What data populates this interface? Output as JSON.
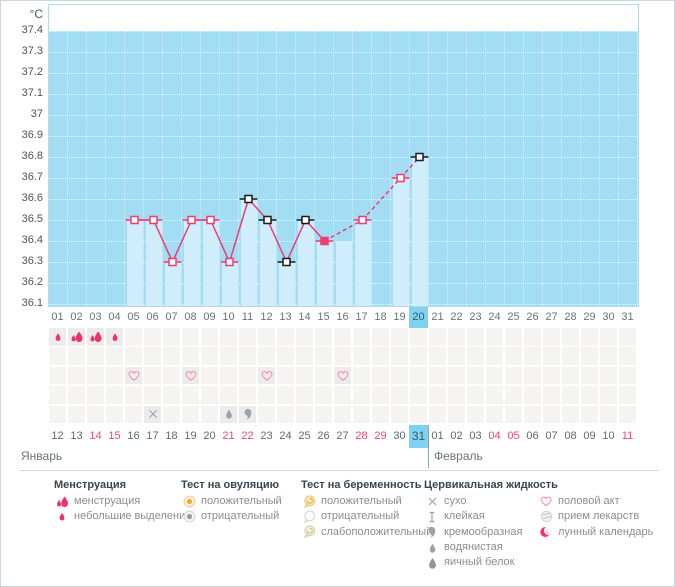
{
  "y_axis": {
    "unit": "°C",
    "tick_labels": [
      "37.4",
      "37.3",
      "37.2",
      "37.1",
      "37",
      "36.9",
      "36.8",
      "36.7",
      "36.6",
      "36.5",
      "36.4",
      "36.3",
      "36.2",
      "36.1"
    ]
  },
  "chart_data": {
    "type": "line",
    "ylabel": "°C",
    "ylim": [
      36.1,
      37.4
    ],
    "grid_step": 0.1,
    "x_categories": [
      "01",
      "02",
      "03",
      "04",
      "05",
      "06",
      "07",
      "08",
      "09",
      "10",
      "11",
      "12",
      "13",
      "14",
      "15",
      "16",
      "17",
      "18",
      "19",
      "20",
      "21",
      "22",
      "23",
      "24",
      "25",
      "26",
      "27",
      "28",
      "29",
      "30",
      "31"
    ],
    "points": [
      {
        "day": 5,
        "temp": 36.5,
        "marker": "pink-open",
        "link_to_prev": null
      },
      {
        "day": 6,
        "temp": 36.5,
        "marker": "pink-open",
        "link_to_prev": "solid"
      },
      {
        "day": 7,
        "temp": 36.3,
        "marker": "pink-open",
        "link_to_prev": "solid"
      },
      {
        "day": 8,
        "temp": 36.5,
        "marker": "pink-open",
        "link_to_prev": "solid"
      },
      {
        "day": 9,
        "temp": 36.5,
        "marker": "pink-open",
        "link_to_prev": "solid"
      },
      {
        "day": 10,
        "temp": 36.3,
        "marker": "pink-open",
        "link_to_prev": "solid"
      },
      {
        "day": 11,
        "temp": 36.6,
        "marker": "black-open",
        "link_to_prev": "solid"
      },
      {
        "day": 12,
        "temp": 36.5,
        "marker": "black-open",
        "link_to_prev": "solid"
      },
      {
        "day": 13,
        "temp": 36.3,
        "marker": "black-open",
        "link_to_prev": "solid"
      },
      {
        "day": 14,
        "temp": 36.5,
        "marker": "black-open",
        "link_to_prev": "solid"
      },
      {
        "day": 15,
        "temp": 36.4,
        "marker": "pink-filled",
        "link_to_prev": "solid"
      },
      {
        "day": 17,
        "temp": 36.5,
        "marker": "pink-open",
        "link_to_prev": "dashed"
      },
      {
        "day": 19,
        "temp": 36.7,
        "marker": "pink-open",
        "link_to_prev": "dashed"
      },
      {
        "day": 20,
        "temp": 36.8,
        "marker": "black-open",
        "link_to_prev": "dashed"
      }
    ],
    "bars": [
      {
        "day": 5,
        "top": 36.5
      },
      {
        "day": 6,
        "top": 36.5
      },
      {
        "day": 7,
        "top": 36.3
      },
      {
        "day": 8,
        "top": 36.5
      },
      {
        "day": 9,
        "top": 36.5
      },
      {
        "day": 10,
        "top": 36.3
      },
      {
        "day": 11,
        "top": 36.6
      },
      {
        "day": 12,
        "top": 36.5
      },
      {
        "day": 13,
        "top": 36.3
      },
      {
        "day": 14,
        "top": 36.5
      },
      {
        "day": 15,
        "top": 36.4
      },
      {
        "day": 16,
        "top": 36.4
      },
      {
        "day": 17,
        "top": 36.5
      },
      {
        "day": 19,
        "top": 36.7
      },
      {
        "day": 20,
        "top": 36.8
      }
    ]
  },
  "cycle_days": {
    "labels": [
      "01",
      "02",
      "03",
      "04",
      "05",
      "06",
      "07",
      "08",
      "09",
      "10",
      "11",
      "12",
      "13",
      "14",
      "15",
      "16",
      "17",
      "18",
      "19",
      "20",
      "21",
      "22",
      "23",
      "24",
      "25",
      "26",
      "27",
      "28",
      "29",
      "30",
      "31"
    ],
    "highlight_index": 19
  },
  "symbol_rows": [
    {
      "name": "menstruation",
      "cells": [
        {
          "day": 1,
          "icon": "drop-small-pink"
        },
        {
          "day": 2,
          "icon": "drop-double-pink"
        },
        {
          "day": 3,
          "icon": "drop-double-pink"
        },
        {
          "day": 4,
          "icon": "drop-small-pink"
        }
      ]
    },
    {
      "name": "ovulation-test",
      "cells": []
    },
    {
      "name": "intercourse",
      "cells": [
        {
          "day": 5,
          "icon": "heart-pink"
        },
        {
          "day": 8,
          "icon": "heart-pink"
        },
        {
          "day": 12,
          "icon": "heart-pink"
        },
        {
          "day": 16,
          "icon": "heart-pink"
        }
      ]
    },
    {
      "name": "pregnancy-test",
      "cells": []
    },
    {
      "name": "cervical-fluid",
      "cells": [
        {
          "day": 6,
          "icon": "x-dry"
        },
        {
          "day": 10,
          "icon": "drop-watery"
        },
        {
          "day": 11,
          "icon": "comma-creamy"
        }
      ]
    }
  ],
  "calendar": {
    "dates": [
      {
        "label": "12",
        "weekend": false
      },
      {
        "label": "13",
        "weekend": false
      },
      {
        "label": "14",
        "weekend": true
      },
      {
        "label": "15",
        "weekend": true
      },
      {
        "label": "16",
        "weekend": false
      },
      {
        "label": "17",
        "weekend": false
      },
      {
        "label": "18",
        "weekend": false
      },
      {
        "label": "19",
        "weekend": false
      },
      {
        "label": "20",
        "weekend": false
      },
      {
        "label": "21",
        "weekend": true
      },
      {
        "label": "22",
        "weekend": true
      },
      {
        "label": "23",
        "weekend": false
      },
      {
        "label": "24",
        "weekend": false
      },
      {
        "label": "25",
        "weekend": false
      },
      {
        "label": "26",
        "weekend": false
      },
      {
        "label": "27",
        "weekend": false
      },
      {
        "label": "28",
        "weekend": true
      },
      {
        "label": "29",
        "weekend": true
      },
      {
        "label": "30",
        "weekend": false
      },
      {
        "label": "31",
        "weekend": false
      },
      {
        "label": "01",
        "weekend": false
      },
      {
        "label": "02",
        "weekend": false
      },
      {
        "label": "03",
        "weekend": false
      },
      {
        "label": "04",
        "weekend": true
      },
      {
        "label": "05",
        "weekend": true
      },
      {
        "label": "06",
        "weekend": false
      },
      {
        "label": "07",
        "weekend": false
      },
      {
        "label": "08",
        "weekend": false
      },
      {
        "label": "09",
        "weekend": false
      },
      {
        "label": "10",
        "weekend": false
      },
      {
        "label": "11",
        "weekend": true
      }
    ],
    "highlight_index": 19,
    "month_divider_index": 20,
    "months": [
      {
        "name": "Январь"
      },
      {
        "name": "Февраль"
      }
    ]
  },
  "legend": {
    "columns": [
      {
        "title": "Менструация",
        "items": [
          {
            "icon": "drop-double-pink",
            "label": "менструация"
          },
          {
            "icon": "drop-small-pink",
            "label": "небольшие выделения"
          }
        ]
      },
      {
        "title": "Тест на овуляцию",
        "items": [
          {
            "icon": "circle-orange",
            "label": "положительный"
          },
          {
            "icon": "circle-gray",
            "label": "отрицательный"
          }
        ]
      },
      {
        "title": "Тест на беременность",
        "items": [
          {
            "icon": "balloon-yellow",
            "label": "положительный"
          },
          {
            "icon": "balloon-white",
            "label": "отрицательный"
          },
          {
            "icon": "balloon-pale",
            "label": "слабоположительный"
          }
        ]
      },
      {
        "title": "Цервикальная жидкость",
        "items": [
          {
            "icon": "x-dry",
            "label": "сухо"
          },
          {
            "icon": "i-beam",
            "label": "клейкая"
          },
          {
            "icon": "comma-creamy",
            "label": "кремообразная"
          },
          {
            "icon": "drop-watery",
            "label": "водянистая"
          },
          {
            "icon": "drop-eggwhite",
            "label": "яичный белок"
          }
        ]
      },
      {
        "title": "",
        "items": [
          {
            "icon": "heart-pink",
            "label": "половой акт"
          },
          {
            "icon": "pill",
            "label": "прием лекарств"
          },
          {
            "icon": "crescent-pink",
            "label": "лунный календарь"
          }
        ]
      }
    ]
  },
  "colors": {
    "plot_background": "#a3ddf3",
    "bar_fill": "#cfedfb",
    "highlight_cell": "#7ed3f1",
    "line_pink": "#ee3d72",
    "marker_black": "#1c1c1c",
    "menstruation_pink": "#f23068",
    "weekend_red": "#f2466f",
    "grid_cell": "#f5f4f3",
    "legend_header_text": "#39464e",
    "legend_item_text": "#8c8c8c"
  }
}
